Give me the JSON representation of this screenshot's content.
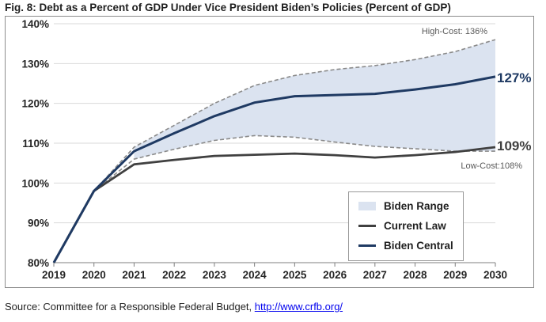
{
  "title": "Fig. 8: Debt as a Percent of GDP Under Vice President Biden’s Policies (Percent of GDP)",
  "source": {
    "prefix": "Source:  Committee for a Responsible Federal Budget, ",
    "link": "http://www.crfb.org/"
  },
  "colors": {
    "range_fill": "#dbe3f0",
    "bound_line": "#8a8a8a",
    "current_law": "#404040",
    "biden_central": "#1f3a63",
    "grid": "#d9d9d9"
  },
  "chart_data": {
    "type": "line",
    "x": [
      "2019",
      "2020",
      "2021",
      "2022",
      "2023",
      "2024",
      "2025",
      "2026",
      "2027",
      "2028",
      "2029",
      "2030"
    ],
    "yticks": [
      "80%",
      "90%",
      "100%",
      "110%",
      "120%",
      "130%",
      "140%"
    ],
    "ylim": [
      80,
      140
    ],
    "grid": "horizontal",
    "legend": [
      "Biden Range",
      "Current Law",
      "Biden Central"
    ],
    "legend_position": "lower-right",
    "series": [
      {
        "name": "Current Law",
        "values": [
          80,
          98,
          104.7,
          105.8,
          106.8,
          107.1,
          107.4,
          107,
          106.4,
          107,
          107.8,
          109
        ]
      },
      {
        "name": "Biden Central",
        "values": [
          80,
          98,
          108,
          112.5,
          116.8,
          120.2,
          121.8,
          122.1,
          122.4,
          123.5,
          124.8,
          126.7
        ]
      },
      {
        "name": "High-Cost",
        "values": [
          80,
          98,
          109,
          114.5,
          120,
          124.5,
          127,
          128.5,
          129.5,
          131,
          133,
          136
        ]
      },
      {
        "name": "Low-Cost",
        "values": [
          80,
          98,
          106,
          108.5,
          110.7,
          111.9,
          111.5,
          110.3,
          109.2,
          108.6,
          108,
          108
        ]
      }
    ],
    "annotations": {
      "high_cost": "High-Cost: 136%",
      "low_cost": "Low-Cost:108%",
      "central_end": "127%",
      "current_end": "109%"
    }
  }
}
